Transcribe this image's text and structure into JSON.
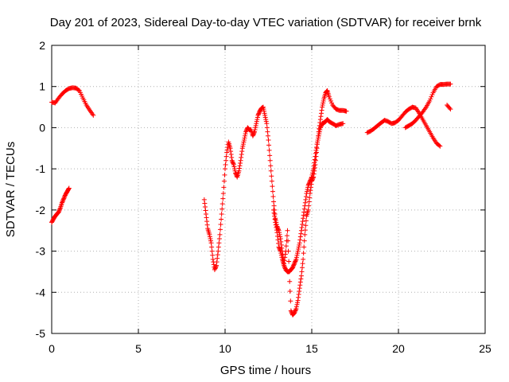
{
  "chart_data": {
    "type": "scatter",
    "title": "Day 201 of 2023, Sidereal Day-to-day VTEC variation (SDTVAR) for receiver brnk",
    "xlabel": "GPS time / hours",
    "ylabel": "SDTVAR / TECUs",
    "xlim": [
      0,
      25
    ],
    "ylim": [
      -5,
      2
    ],
    "xticks": [
      "0",
      "5",
      "10",
      "15",
      "20",
      "25"
    ],
    "yticks": [
      "-5",
      "-4",
      "-3",
      "-2",
      "-1",
      "0",
      "1",
      "2"
    ],
    "grid": true,
    "marker": "plus",
    "series_color": "#ff0000",
    "segments": [
      [
        [
          0.0,
          0.62
        ],
        [
          0.2,
          0.6
        ],
        [
          0.4,
          0.72
        ],
        [
          0.6,
          0.82
        ],
        [
          0.8,
          0.9
        ],
        [
          1.0,
          0.95
        ],
        [
          1.2,
          0.97
        ],
        [
          1.4,
          0.96
        ],
        [
          1.6,
          0.9
        ],
        [
          1.8,
          0.72
        ],
        [
          2.0,
          0.55
        ],
        [
          2.2,
          0.42
        ],
        [
          2.4,
          0.3
        ]
      ],
      [
        [
          0.0,
          -2.3
        ],
        [
          0.1,
          -2.22
        ],
        [
          0.2,
          -2.15
        ],
        [
          0.3,
          -2.1
        ],
        [
          0.4,
          -2.05
        ],
        [
          0.5,
          -1.95
        ],
        [
          0.6,
          -1.82
        ],
        [
          0.7,
          -1.72
        ],
        [
          0.8,
          -1.62
        ],
        [
          0.9,
          -1.55
        ],
        [
          1.0,
          -1.47
        ]
      ],
      [
        [
          8.8,
          -1.75
        ],
        [
          8.9,
          -2.1
        ],
        [
          9.0,
          -2.45
        ],
        [
          9.1,
          -2.6
        ],
        [
          9.2,
          -2.8
        ],
        [
          9.3,
          -3.2
        ],
        [
          9.4,
          -3.45
        ],
        [
          9.5,
          -3.35
        ],
        [
          9.6,
          -3.0
        ],
        [
          9.7,
          -2.6
        ],
        [
          9.8,
          -2.1
        ],
        [
          9.9,
          -1.6
        ],
        [
          10.0,
          -1.0
        ],
        [
          10.1,
          -0.6
        ],
        [
          10.2,
          -0.35
        ],
        [
          10.3,
          -0.5
        ],
        [
          10.4,
          -0.8
        ],
        [
          10.5,
          -0.9
        ],
        [
          10.6,
          -1.1
        ],
        [
          10.7,
          -1.2
        ],
        [
          10.8,
          -1.05
        ],
        [
          10.9,
          -0.8
        ],
        [
          11.0,
          -0.5
        ],
        [
          11.1,
          -0.3
        ],
        [
          11.2,
          -0.1
        ],
        [
          11.3,
          0.0
        ],
        [
          11.4,
          -0.05
        ],
        [
          11.5,
          -0.05
        ],
        [
          11.6,
          -0.2
        ],
        [
          11.7,
          -0.1
        ],
        [
          11.8,
          0.1
        ],
        [
          11.9,
          0.3
        ],
        [
          12.0,
          0.4
        ],
        [
          12.1,
          0.47
        ],
        [
          12.2,
          0.5
        ],
        [
          12.3,
          0.3
        ],
        [
          12.4,
          0.1
        ],
        [
          12.5,
          -0.3
        ],
        [
          12.6,
          -0.8
        ],
        [
          12.7,
          -1.3
        ],
        [
          12.8,
          -1.8
        ],
        [
          12.9,
          -2.2
        ],
        [
          13.0,
          -2.4
        ],
        [
          13.1,
          -2.5
        ],
        [
          13.2,
          -2.7
        ],
        [
          13.3,
          -3.0
        ],
        [
          13.4,
          -3.3
        ],
        [
          13.5,
          -3.0
        ],
        [
          13.6,
          -2.5
        ],
        [
          13.7,
          -3.5
        ],
        [
          13.8,
          -4.45
        ],
        [
          13.9,
          -4.55
        ],
        [
          14.0,
          -4.5
        ],
        [
          14.1,
          -4.4
        ],
        [
          14.2,
          -4.2
        ],
        [
          14.3,
          -3.9
        ],
        [
          14.4,
          -3.6
        ],
        [
          14.5,
          -3.2
        ],
        [
          14.6,
          -2.6
        ],
        [
          14.7,
          -2.15
        ],
        [
          14.8,
          -2.0
        ],
        [
          14.9,
          -1.6
        ],
        [
          15.0,
          -1.3
        ],
        [
          15.1,
          -1.2
        ],
        [
          15.2,
          -0.9
        ],
        [
          15.3,
          -0.5
        ],
        [
          15.4,
          -0.1
        ],
        [
          15.5,
          0.2
        ],
        [
          15.6,
          0.5
        ],
        [
          15.7,
          0.7
        ],
        [
          15.8,
          0.85
        ],
        [
          15.9,
          0.9
        ],
        [
          16.0,
          0.75
        ],
        [
          16.2,
          0.55
        ],
        [
          16.4,
          0.45
        ],
        [
          16.6,
          0.42
        ],
        [
          16.8,
          0.42
        ],
        [
          17.0,
          0.4
        ]
      ],
      [
        [
          12.8,
          -2.0
        ],
        [
          12.9,
          -2.3
        ],
        [
          13.0,
          -2.55
        ],
        [
          13.1,
          -2.9
        ],
        [
          13.2,
          -3.0
        ],
        [
          13.3,
          -3.2
        ],
        [
          13.4,
          -3.35
        ],
        [
          13.5,
          -3.45
        ],
        [
          13.6,
          -3.5
        ],
        [
          13.7,
          -3.5
        ],
        [
          13.8,
          -3.45
        ],
        [
          13.9,
          -3.4
        ],
        [
          14.0,
          -3.3
        ],
        [
          14.1,
          -3.2
        ],
        [
          14.2,
          -3.0
        ],
        [
          14.3,
          -2.8
        ],
        [
          14.4,
          -2.5
        ],
        [
          14.5,
          -2.2
        ],
        [
          14.6,
          -1.9
        ],
        [
          14.7,
          -1.6
        ],
        [
          14.8,
          -1.4
        ],
        [
          14.9,
          -1.3
        ],
        [
          15.0,
          -1.2
        ],
        [
          15.1,
          -1.0
        ],
        [
          15.2,
          -0.7
        ],
        [
          15.3,
          -0.4
        ],
        [
          15.4,
          -0.2
        ],
        [
          15.5,
          0.0
        ],
        [
          15.6,
          0.1
        ],
        [
          15.7,
          0.12
        ],
        [
          15.8,
          0.15
        ],
        [
          15.9,
          0.2
        ],
        [
          16.0,
          0.15
        ],
        [
          16.2,
          0.1
        ],
        [
          16.4,
          0.05
        ],
        [
          16.6,
          0.08
        ],
        [
          16.8,
          0.1
        ]
      ],
      [
        [
          18.2,
          -0.12
        ],
        [
          18.4,
          -0.08
        ],
        [
          18.6,
          -0.02
        ],
        [
          18.8,
          0.05
        ],
        [
          19.0,
          0.12
        ],
        [
          19.2,
          0.18
        ],
        [
          19.4,
          0.15
        ],
        [
          19.6,
          0.1
        ],
        [
          19.8,
          0.12
        ],
        [
          20.0,
          0.18
        ],
        [
          20.2,
          0.28
        ],
        [
          20.4,
          0.38
        ],
        [
          20.6,
          0.45
        ],
        [
          20.8,
          0.5
        ],
        [
          21.0,
          0.48
        ],
        [
          21.2,
          0.35
        ],
        [
          21.4,
          0.2
        ],
        [
          21.6,
          0.05
        ],
        [
          21.8,
          -0.1
        ],
        [
          22.0,
          -0.25
        ],
        [
          22.2,
          -0.38
        ],
        [
          22.4,
          -0.45
        ]
      ],
      [
        [
          20.4,
          0.0
        ],
        [
          20.6,
          0.05
        ],
        [
          20.8,
          0.1
        ],
        [
          21.0,
          0.18
        ],
        [
          21.2,
          0.28
        ],
        [
          21.4,
          0.38
        ],
        [
          21.6,
          0.5
        ],
        [
          21.8,
          0.65
        ],
        [
          22.0,
          0.85
        ],
        [
          22.2,
          1.0
        ],
        [
          22.4,
          1.05
        ],
        [
          22.6,
          1.05
        ],
        [
          22.8,
          1.06
        ],
        [
          23.0,
          1.06
        ]
      ],
      [
        [
          22.8,
          0.55
        ],
        [
          23.0,
          0.45
        ]
      ]
    ]
  }
}
